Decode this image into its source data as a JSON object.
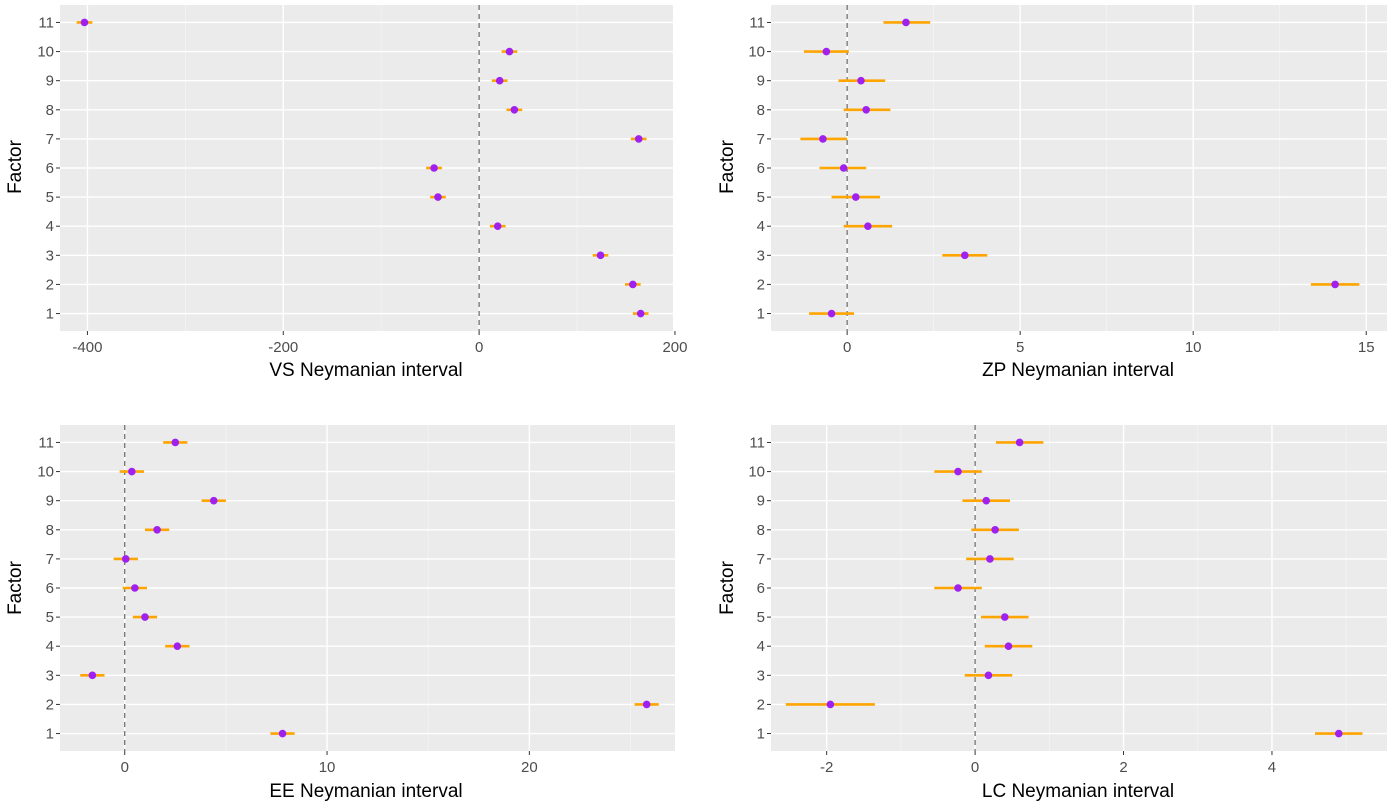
{
  "colors": {
    "panel_background": "#ebebeb",
    "gridline": "#ffffff",
    "interval": "#ffa500",
    "point": "#a020f0",
    "reference_line": "#5a5a5a"
  },
  "chart_data": [
    {
      "type": "scatter",
      "subtype": "interval-dot",
      "xlabel": "VS Neymanian interval",
      "ylabel": "Factor",
      "xlim": [
        -428,
        198
      ],
      "x_ticks": [
        -400,
        -200,
        0,
        200
      ],
      "x_tick_labels": [
        "-400",
        "-200",
        "0",
        "200"
      ],
      "y_categories": [
        "1",
        "2",
        "3",
        "4",
        "5",
        "6",
        "7",
        "8",
        "9",
        "10",
        "11"
      ],
      "reference_line_x": 0,
      "grid": true,
      "points": [
        {
          "factor": "1",
          "estimate": 165,
          "lower": 157,
          "upper": 173
        },
        {
          "factor": "2",
          "estimate": 157,
          "lower": 149,
          "upper": 165
        },
        {
          "factor": "3",
          "estimate": 124,
          "lower": 116,
          "upper": 132
        },
        {
          "factor": "4",
          "estimate": 19,
          "lower": 11,
          "upper": 27
        },
        {
          "factor": "5",
          "estimate": -42,
          "lower": -50,
          "upper": -34
        },
        {
          "factor": "6",
          "estimate": -46,
          "lower": -54,
          "upper": -38
        },
        {
          "factor": "7",
          "estimate": 163,
          "lower": 155,
          "upper": 171
        },
        {
          "factor": "8",
          "estimate": 36,
          "lower": 28,
          "upper": 44
        },
        {
          "factor": "9",
          "estimate": 21,
          "lower": 13,
          "upper": 29
        },
        {
          "factor": "10",
          "estimate": 31,
          "lower": 23,
          "upper": 39
        },
        {
          "factor": "11",
          "estimate": -403,
          "lower": -411,
          "upper": -395
        }
      ]
    },
    {
      "type": "scatter",
      "subtype": "interval-dot",
      "xlabel": "ZP Neymanian interval",
      "ylabel": "Factor",
      "xlim": [
        -2.2,
        15.6
      ],
      "x_ticks": [
        0,
        5,
        10,
        15
      ],
      "x_tick_labels": [
        "0",
        "5",
        "10",
        "15"
      ],
      "y_categories": [
        "1",
        "2",
        "3",
        "4",
        "5",
        "6",
        "7",
        "8",
        "9",
        "10",
        "11"
      ],
      "reference_line_x": 0,
      "grid": true,
      "points": [
        {
          "factor": "1",
          "estimate": -0.45,
          "lower": -1.1,
          "upper": 0.2
        },
        {
          "factor": "2",
          "estimate": 14.1,
          "lower": 13.4,
          "upper": 14.8
        },
        {
          "factor": "3",
          "estimate": 3.4,
          "lower": 2.75,
          "upper": 4.05
        },
        {
          "factor": "4",
          "estimate": 0.6,
          "lower": -0.1,
          "upper": 1.3
        },
        {
          "factor": "5",
          "estimate": 0.25,
          "lower": -0.45,
          "upper": 0.95
        },
        {
          "factor": "6",
          "estimate": -0.1,
          "lower": -0.8,
          "upper": 0.55
        },
        {
          "factor": "7",
          "estimate": -0.7,
          "lower": -1.35,
          "upper": 0.0
        },
        {
          "factor": "8",
          "estimate": 0.55,
          "lower": -0.1,
          "upper": 1.25
        },
        {
          "factor": "9",
          "estimate": 0.4,
          "lower": -0.25,
          "upper": 1.1
        },
        {
          "factor": "10",
          "estimate": -0.6,
          "lower": -1.25,
          "upper": 0.05
        },
        {
          "factor": "11",
          "estimate": 1.7,
          "lower": 1.05,
          "upper": 2.4
        }
      ]
    },
    {
      "type": "scatter",
      "subtype": "interval-dot",
      "xlabel": "EE Neymanian interval",
      "ylabel": "Factor",
      "xlim": [
        -3.2,
        27.2
      ],
      "x_ticks": [
        0,
        10,
        20
      ],
      "x_tick_labels": [
        "0",
        "10",
        "20"
      ],
      "y_categories": [
        "1",
        "2",
        "3",
        "4",
        "5",
        "6",
        "7",
        "8",
        "9",
        "10",
        "11"
      ],
      "reference_line_x": 0,
      "grid": true,
      "points": [
        {
          "factor": "1",
          "estimate": 7.8,
          "lower": 7.2,
          "upper": 8.4
        },
        {
          "factor": "2",
          "estimate": 25.8,
          "lower": 25.2,
          "upper": 26.4
        },
        {
          "factor": "3",
          "estimate": -1.6,
          "lower": -2.2,
          "upper": -1.0
        },
        {
          "factor": "4",
          "estimate": 2.6,
          "lower": 2.0,
          "upper": 3.2
        },
        {
          "factor": "5",
          "estimate": 1.0,
          "lower": 0.4,
          "upper": 1.6
        },
        {
          "factor": "6",
          "estimate": 0.5,
          "lower": -0.1,
          "upper": 1.1
        },
        {
          "factor": "7",
          "estimate": 0.05,
          "lower": -0.55,
          "upper": 0.65
        },
        {
          "factor": "8",
          "estimate": 1.6,
          "lower": 1.0,
          "upper": 2.2
        },
        {
          "factor": "9",
          "estimate": 4.4,
          "lower": 3.8,
          "upper": 5.0
        },
        {
          "factor": "10",
          "estimate": 0.35,
          "lower": -0.25,
          "upper": 0.95
        },
        {
          "factor": "11",
          "estimate": 2.5,
          "lower": 1.9,
          "upper": 3.1
        }
      ]
    },
    {
      "type": "scatter",
      "subtype": "interval-dot",
      "xlabel": "LC Neymanian interval",
      "ylabel": "Factor",
      "xlim": [
        -2.75,
        5.55
      ],
      "x_ticks": [
        -2,
        0,
        2,
        4
      ],
      "x_tick_labels": [
        "-2",
        "0",
        "2",
        "4"
      ],
      "y_categories": [
        "1",
        "2",
        "3",
        "4",
        "5",
        "6",
        "7",
        "8",
        "9",
        "10",
        "11"
      ],
      "reference_line_x": 0,
      "grid": true,
      "points": [
        {
          "factor": "1",
          "estimate": 4.9,
          "lower": 4.58,
          "upper": 5.22
        },
        {
          "factor": "2",
          "estimate": -1.95,
          "lower": -2.55,
          "upper": -1.35
        },
        {
          "factor": "3",
          "estimate": 0.18,
          "lower": -0.14,
          "upper": 0.5
        },
        {
          "factor": "4",
          "estimate": 0.45,
          "lower": 0.13,
          "upper": 0.77
        },
        {
          "factor": "5",
          "estimate": 0.4,
          "lower": 0.08,
          "upper": 0.72
        },
        {
          "factor": "6",
          "estimate": -0.23,
          "lower": -0.55,
          "upper": 0.09
        },
        {
          "factor": "7",
          "estimate": 0.2,
          "lower": -0.12,
          "upper": 0.52
        },
        {
          "factor": "8",
          "estimate": 0.27,
          "lower": -0.05,
          "upper": 0.59
        },
        {
          "factor": "9",
          "estimate": 0.15,
          "lower": -0.17,
          "upper": 0.47
        },
        {
          "factor": "10",
          "estimate": -0.23,
          "lower": -0.55,
          "upper": 0.09
        },
        {
          "factor": "11",
          "estimate": 0.6,
          "lower": 0.28,
          "upper": 0.92
        }
      ]
    }
  ]
}
